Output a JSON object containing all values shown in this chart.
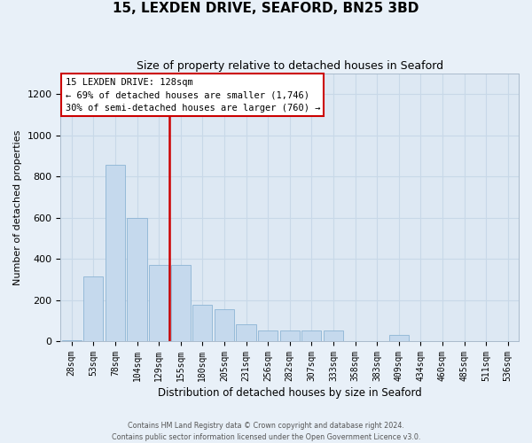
{
  "title": "15, LEXDEN DRIVE, SEAFORD, BN25 3BD",
  "subtitle": "Size of property relative to detached houses in Seaford",
  "xlabel": "Distribution of detached houses by size in Seaford",
  "ylabel": "Number of detached properties",
  "categories": [
    "28sqm",
    "53sqm",
    "78sqm",
    "104sqm",
    "129sqm",
    "155sqm",
    "180sqm",
    "205sqm",
    "231sqm",
    "256sqm",
    "282sqm",
    "307sqm",
    "333sqm",
    "358sqm",
    "383sqm",
    "409sqm",
    "434sqm",
    "460sqm",
    "485sqm",
    "511sqm",
    "536sqm"
  ],
  "values": [
    5,
    315,
    855,
    600,
    370,
    370,
    175,
    155,
    80,
    50,
    50,
    50,
    50,
    0,
    0,
    30,
    0,
    0,
    0,
    0,
    0
  ],
  "bar_color": "#c5d9ed",
  "bar_edge_color": "#8db4d4",
  "vline_index": 4.5,
  "annotation_line1": "15 LEXDEN DRIVE: 128sqm",
  "annotation_line2": "← 69% of detached houses are smaller (1,746)",
  "annotation_line3": "30% of semi-detached houses are larger (760) →",
  "vline_color": "#cc0000",
  "ylim": [
    0,
    1300
  ],
  "yticks": [
    0,
    200,
    400,
    600,
    800,
    1000,
    1200
  ],
  "grid_color": "#c8d8e8",
  "bg_color": "#dde8f3",
  "fig_bg": "#e8f0f8",
  "footer1": "Contains HM Land Registry data © Crown copyright and database right 2024.",
  "footer2": "Contains public sector information licensed under the Open Government Licence v3.0."
}
